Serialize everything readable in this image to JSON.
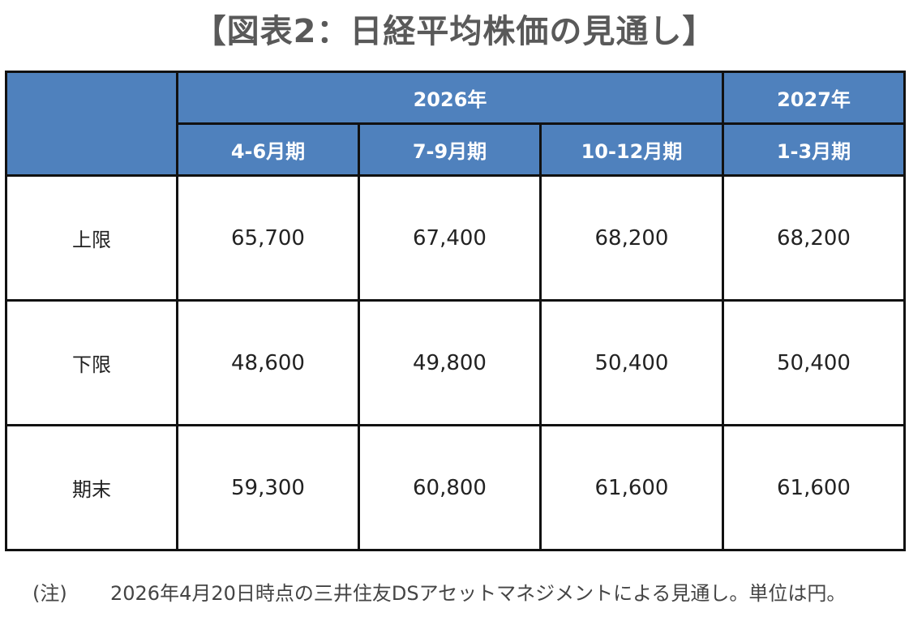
{
  "title": "【図表2：日経平均株価の見通し】",
  "chart_data": {
    "type": "table",
    "title": "【図表2：日経平均株価の見通し】",
    "year_headers": [
      {
        "label": "2026年",
        "span": 3
      },
      {
        "label": "2027年",
        "span": 1
      }
    ],
    "columns": [
      "4-6月期",
      "7-9月期",
      "10-12月期",
      "1-3月期"
    ],
    "rows": [
      {
        "label": "上限",
        "values": [
          "65,700",
          "67,400",
          "68,200",
          "68,200"
        ]
      },
      {
        "label": "下限",
        "values": [
          "48,600",
          "49,800",
          "50,400",
          "50,400"
        ]
      },
      {
        "label": "期末",
        "values": [
          "59,300",
          "60,800",
          "61,600",
          "61,600"
        ]
      }
    ],
    "header_color": "#4f81bd"
  },
  "note": {
    "tag": "(注)",
    "text": "2026年4月20日時点の三井住友DSアセットマネジメントによる見通し。単位は円。"
  }
}
